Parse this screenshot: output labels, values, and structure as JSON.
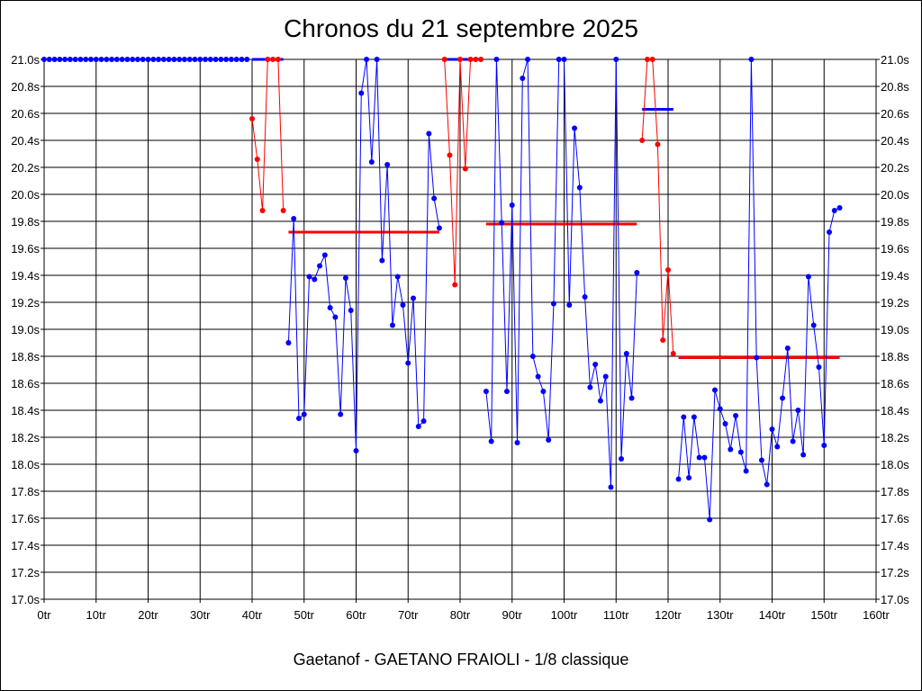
{
  "chart_data": {
    "type": "line",
    "title": "Chronos du 21 septembre 2025",
    "footer": "Gaetanof - GAETANO FRAIOLI - 1/8 classique",
    "x_ticks": [
      "0tr",
      "10tr",
      "20tr",
      "30tr",
      "40tr",
      "50tr",
      "60tr",
      "70tr",
      "80tr",
      "90tr",
      "100tr",
      "110tr",
      "120tr",
      "130tr",
      "140tr",
      "150tr",
      "160tr"
    ],
    "y_ticks": [
      "21.0s",
      "20.8s",
      "20.6s",
      "20.4s",
      "20.2s",
      "20.0s",
      "19.8s",
      "19.6s",
      "19.4s",
      "19.2s",
      "19.0s",
      "18.8s",
      "18.6s",
      "18.4s",
      "18.2s",
      "18.0s",
      "17.8s",
      "17.6s",
      "17.4s",
      "17.2s",
      "17.0s"
    ],
    "xlim": [
      0,
      160
    ],
    "ylim": [
      17.0,
      21.0
    ],
    "grid": true,
    "colors": {
      "blue": "#0000ff",
      "red": "#ff0000"
    },
    "segments": [
      {
        "color": "blue",
        "values": [
          21,
          21,
          21,
          21,
          21,
          21,
          21,
          21,
          21,
          21,
          21,
          21,
          21,
          21,
          21,
          21,
          21,
          21,
          21,
          21,
          21,
          21,
          21,
          21,
          21,
          21,
          21,
          21,
          21,
          21,
          21,
          21,
          21,
          21,
          21,
          21,
          21,
          21,
          21,
          21
        ],
        "start": 0
      },
      {
        "color": "red",
        "values": [
          20.56,
          20.26,
          19.88,
          21.0,
          21.0,
          21.0,
          19.88
        ],
        "start": 40
      },
      {
        "color": "blue",
        "values": [
          18.9,
          19.82,
          18.34,
          18.37,
          19.39,
          19.37,
          19.47,
          19.55,
          19.16,
          19.09,
          18.37,
          19.38,
          19.14,
          18.1,
          20.75,
          21.0,
          20.24,
          21.0,
          19.51,
          20.22,
          19.03,
          19.39,
          19.18,
          18.75,
          19.23,
          18.28,
          18.32,
          20.45,
          19.97,
          19.75
        ],
        "start": 47
      },
      {
        "color": "red",
        "values": [
          21.0,
          20.29,
          19.33,
          21.0,
          20.19,
          21.0,
          21.0,
          21.0
        ],
        "start": 77
      },
      {
        "color": "blue",
        "values": [
          18.54,
          18.17,
          21.0,
          19.79,
          18.54,
          19.92,
          18.16,
          20.86,
          21.0,
          18.8,
          18.65,
          18.54,
          18.18,
          19.19,
          21.0,
          21.0,
          19.18,
          20.49,
          20.05,
          19.24,
          18.57,
          18.74,
          18.47,
          18.65,
          17.83,
          21.0,
          18.04,
          18.82,
          18.49,
          19.42
        ],
        "start": 85
      },
      {
        "color": "red",
        "values": [
          20.4,
          21.0,
          21.0,
          20.37,
          18.92,
          19.44,
          18.82
        ],
        "start": 115
      },
      {
        "color": "blue",
        "values": [
          17.89,
          18.35,
          17.9,
          18.35,
          18.05,
          18.05,
          17.59,
          18.55,
          18.41,
          18.3,
          18.11,
          18.36,
          18.09,
          17.95,
          21.0,
          18.79,
          18.03,
          17.85,
          18.26,
          18.13,
          18.49,
          18.86,
          18.17,
          18.4,
          18.07,
          19.39,
          19.03,
          18.72,
          18.14,
          19.72,
          19.88,
          19.9
        ],
        "start": 122
      }
    ],
    "averages": [
      {
        "color": "blue",
        "x1": 40,
        "x2": 46,
        "y": 21.0
      },
      {
        "color": "red",
        "x1": 47,
        "x2": 76,
        "y": 19.72
      },
      {
        "color": "blue",
        "x1": 77,
        "x2": 84,
        "y": 21.0
      },
      {
        "color": "red",
        "x1": 85,
        "x2": 114,
        "y": 19.78
      },
      {
        "color": "blue",
        "x1": 115,
        "x2": 121,
        "y": 20.63
      },
      {
        "color": "red",
        "x1": 122,
        "x2": 153,
        "y": 18.79
      }
    ]
  }
}
